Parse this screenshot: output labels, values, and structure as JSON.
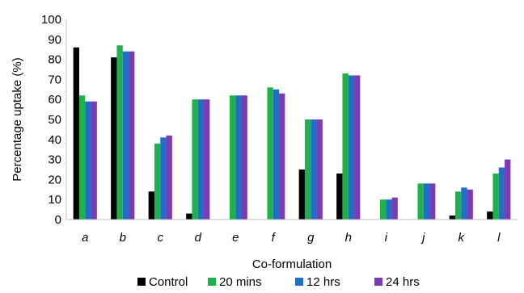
{
  "chart_data": {
    "type": "bar",
    "categories": [
      "a",
      "b",
      "c",
      "d",
      "e",
      "f",
      "g",
      "h",
      "i",
      "j",
      "k",
      "l"
    ],
    "series": [
      {
        "name": "Control",
        "color": "#000000",
        "values": [
          86,
          81,
          14,
          3,
          0,
          0,
          25,
          23,
          0,
          0,
          2,
          4
        ]
      },
      {
        "name": "20 mins",
        "color": "#1fb24a",
        "values": [
          62,
          87,
          38,
          60,
          62,
          66,
          50,
          73,
          10,
          18,
          14,
          23
        ]
      },
      {
        "name": "12 hrs",
        "color": "#1f6fc9",
        "values": [
          59,
          84,
          41,
          60,
          62,
          65,
          50,
          72,
          10,
          18,
          16,
          26
        ]
      },
      {
        "name": "24 hrs",
        "color": "#7b3bb5",
        "values": [
          59,
          84,
          42,
          60,
          62,
          63,
          50,
          72,
          11,
          18,
          15,
          30
        ]
      }
    ],
    "title": "",
    "xlabel": "Co-formulation",
    "ylabel": "Percentage uptake (%)",
    "ylim": [
      0,
      100
    ],
    "yticks": [
      0,
      10,
      20,
      30,
      40,
      50,
      60,
      70,
      80,
      90,
      100
    ],
    "grid": false,
    "legend_position": "bottom"
  }
}
